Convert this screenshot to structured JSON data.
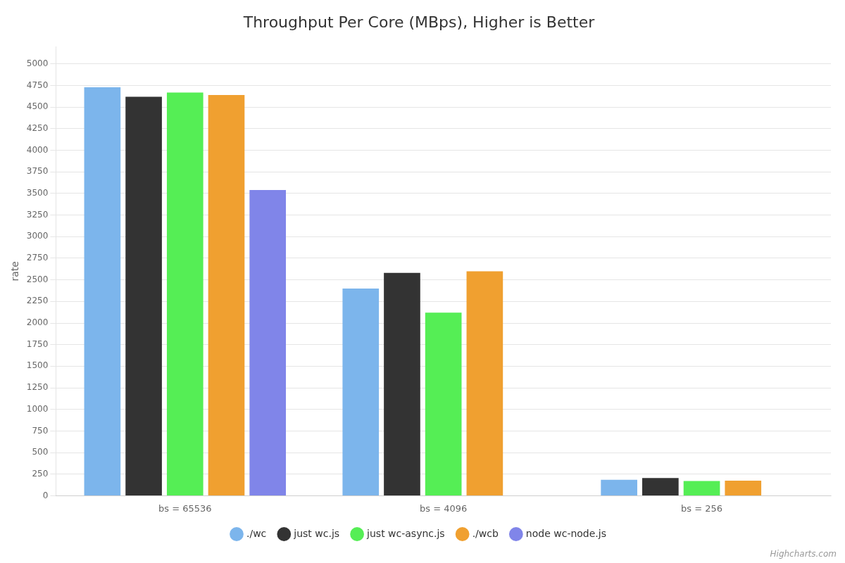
{
  "chart_data": {
    "type": "bar",
    "title": "Throughput Per Core (MBps), Higher is Better",
    "ylabel": "rate",
    "categories": [
      "bs = 65536",
      "bs = 4096",
      "bs = 256"
    ],
    "series": [
      {
        "name": "./wc",
        "color": "#7cb5ec",
        "values": [
          4730,
          2400,
          185
        ]
      },
      {
        "name": "just wc.js",
        "color": "#333333",
        "values": [
          4620,
          2580,
          205
        ]
      },
      {
        "name": "just wc-async.js",
        "color": "#55ee55",
        "values": [
          4670,
          2120,
          170
        ]
      },
      {
        "name": "./wcb",
        "color": "#f0a030",
        "values": [
          4640,
          2600,
          175
        ]
      },
      {
        "name": "node wc-node.js",
        "color": "#8085e9",
        "values": [
          3540,
          null,
          null
        ]
      }
    ],
    "ylim": [
      0,
      5200
    ],
    "yticks": [
      0,
      250,
      500,
      750,
      1000,
      1250,
      1500,
      1750,
      2000,
      2250,
      2500,
      2750,
      3000,
      3250,
      3500,
      3750,
      4000,
      4250,
      4500,
      4750,
      5000
    ],
    "grid": true,
    "legend": "bottom",
    "annotations": [
      "Highcharts.com"
    ]
  }
}
